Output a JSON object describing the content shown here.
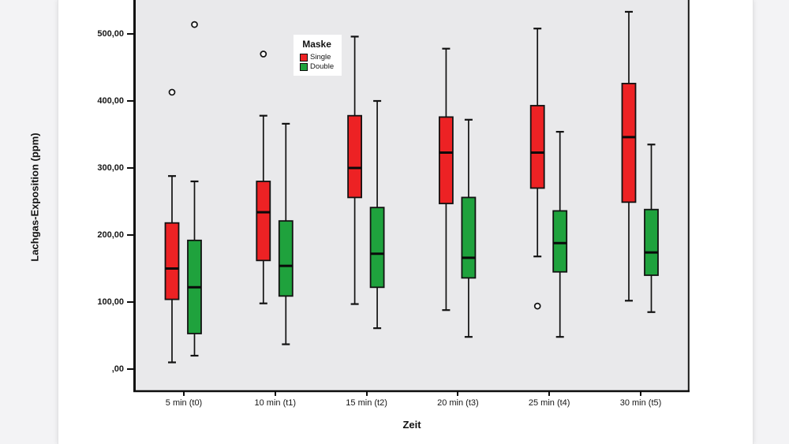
{
  "chart_data": {
    "type": "boxplot",
    "title": "",
    "xlabel": "Zeit",
    "ylabel": "Lachgas-Exposition (ppm)",
    "grid": false,
    "plot_background": "#e9e9eb",
    "ylim_visible": [
      -34,
      550
    ],
    "y_ticks": [
      {
        "value": 0,
        "label": ",00"
      },
      {
        "value": 100,
        "label": "100,00"
      },
      {
        "value": 200,
        "label": "200,00"
      },
      {
        "value": 300,
        "label": "300,00"
      },
      {
        "value": 400,
        "label": "400,00"
      },
      {
        "value": 500,
        "label": "500,00"
      }
    ],
    "categories": [
      "5 min (t0)",
      "10 min (t1)",
      "15 min (t2)",
      "20 min (t3)",
      "25 min (t4)",
      "30 min (t5)"
    ],
    "legend": {
      "title": "Maske",
      "position": "top-inside-left",
      "entries": [
        {
          "label": "Single",
          "color": "#ed2224"
        },
        {
          "label": "Double",
          "color": "#1fa23d"
        }
      ]
    },
    "series": [
      {
        "name": "Single",
        "color": "#ed2224",
        "boxes": [
          {
            "category": "5 min (t0)",
            "low": 10,
            "q1": 104,
            "median": 150,
            "q3": 218,
            "high": 288,
            "outliers": [
              413
            ]
          },
          {
            "category": "10 min (t1)",
            "low": 98,
            "q1": 162,
            "median": 234,
            "q3": 280,
            "high": 378,
            "outliers": [
              470
            ]
          },
          {
            "category": "15 min (t2)",
            "low": 97,
            "q1": 256,
            "median": 300,
            "q3": 378,
            "high": 496,
            "outliers": []
          },
          {
            "category": "20 min (t3)",
            "low": 88,
            "q1": 247,
            "median": 323,
            "q3": 376,
            "high": 478,
            "outliers": []
          },
          {
            "category": "25 min (t4)",
            "low": 168,
            "q1": 270,
            "median": 323,
            "q3": 393,
            "high": 508,
            "outliers": [
              94
            ]
          },
          {
            "category": "30 min (t5)",
            "low": 102,
            "q1": 249,
            "median": 346,
            "q3": 426,
            "high": 533,
            "outliers": []
          }
        ]
      },
      {
        "name": "Double",
        "color": "#1fa23d",
        "boxes": [
          {
            "category": "5 min (t0)",
            "low": 20,
            "q1": 53,
            "median": 122,
            "q3": 192,
            "high": 280,
            "outliers": [
              514
            ]
          },
          {
            "category": "10 min (t1)",
            "low": 37,
            "q1": 109,
            "median": 154,
            "q3": 221,
            "high": 366,
            "outliers": []
          },
          {
            "category": "15 min (t2)",
            "low": 61,
            "q1": 122,
            "median": 172,
            "q3": 241,
            "high": 400,
            "outliers": []
          },
          {
            "category": "20 min (t3)",
            "low": 48,
            "q1": 136,
            "median": 166,
            "q3": 256,
            "high": 372,
            "outliers": []
          },
          {
            "category": "25 min (t4)",
            "low": 48,
            "q1": 145,
            "median": 188,
            "q3": 236,
            "high": 354,
            "outliers": []
          },
          {
            "category": "30 min (t5)",
            "low": 85,
            "q1": 140,
            "median": 174,
            "q3": 238,
            "high": 335,
            "outliers": []
          }
        ]
      }
    ]
  }
}
